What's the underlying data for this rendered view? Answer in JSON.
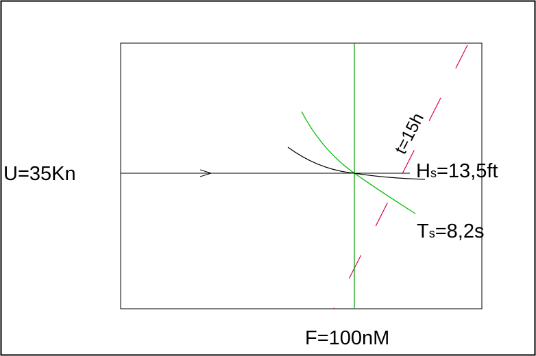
{
  "diagram": {
    "wind_label": "U=35Kn",
    "fetch_label": "F=100nM",
    "duration_label": "t=15h",
    "wave_height": {
      "symbol": "H",
      "subscript": "s",
      "value": "=13,5ft"
    },
    "wave_period": {
      "symbol": "T",
      "subscript": "s",
      "value": "=8,2s"
    }
  },
  "colors": {
    "frame": "#000000",
    "wind_line": "#000000",
    "fetch_line": "#009900",
    "period_curve": "#00bb00",
    "height_curve": "#000000",
    "duration_line": "#e0004a"
  }
}
